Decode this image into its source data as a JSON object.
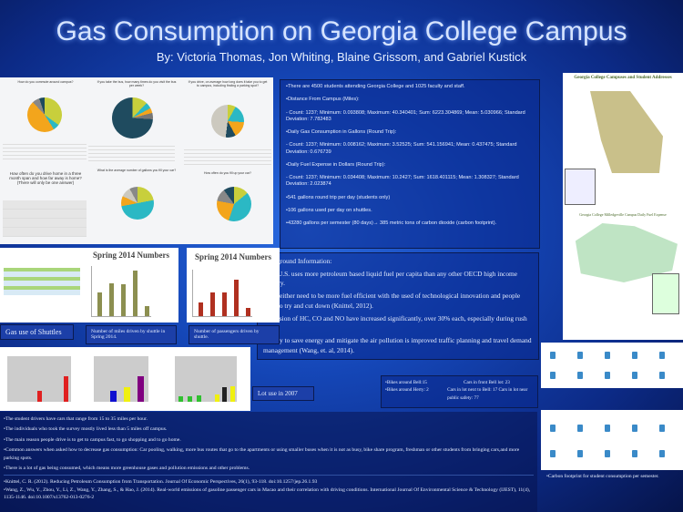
{
  "header": {
    "title": "Gas Consumption on Georgia College Campus",
    "authors": "By: Victoria Thomas, Jon Whiting, Blaine Grissom, and Gabriel Kustick"
  },
  "survey": {
    "q1": "How do you commute around campus?",
    "q2": "If you take the bus, how many times do you visit the bus per week?",
    "q3": "If you drive, on average how long does it take you to get to campus, including finding a parking spot?",
    "q4": "How often do you drive home in a three month span and how far away is home? (There will only be one answer)",
    "q5": "What is the average number of gallons you fill your car?",
    "q6": "How often do you fill up your car?"
  },
  "stats": {
    "items": [
      "•There are 4500 students attending Georgia College and 1025 faculty and staff.",
      "•Distance From Campus (Miles):",
      "- Count: 1237; Minimum: 0.093808; Maximum: 40.340401; Sum: 6223.304869; Mean: 5.030966; Standard Deviation: 7.782483",
      "•Daily Gas Consumption in Gallons (Round Trip):",
      "- Count: 1237; Minimum: 0.008162; Maximum: 3.52525; Sum: 541.156941; Mean: 0.437475; Standard Deviation: 0.676739",
      "•Daily Fuel Expense in Dollars (Round Trip):",
      "- Count: 1237; Minimum: 0.034408; Maximum: 10.2427; Sum: 1618.401115; Mean: 1.308327; Standard Deviation: 2.023874",
      "•541 gallons round trip per day (students only)",
      "•106 gallons used per day on shuttles.",
      "•43280 gallons per semester (80 days)→ 385 metric tons of carbon dioxide (carbon footprint)."
    ]
  },
  "maps": {
    "map1_title": "Georgia College Campuses and Student Addresses",
    "map2_title": "Georgia College Milledgeville Campus Daily Fuel Expense"
  },
  "background": {
    "heading": "Background Information:",
    "items": [
      "•The U.S. uses more petroleum based liquid fuel per capita than any other OECD high income country.",
      "•Cars either need to be more fuel efficient with the used of technological innovation and people need to try and cut down (Knittel, 2012).",
      "•Emission of HC, CO and NO have increased significantly, over 30% each, especially during rush hour.",
      "•A way to save energy and mitigate the air pollution is improved traffic planning and travel demand management (Wang, et. al, 2014)."
    ]
  },
  "shuttle": {
    "chart1_title": "Spring 2014 Numbers",
    "chart2_title": "Spring 2014 Numbers",
    "label": "Gas use of Shuttles",
    "caption1": "Number of miles driven by shuttle in Spring 2014.",
    "caption2": "Number of passengers driven by shuttle."
  },
  "lots": {
    "label": "Lot use in 2007"
  },
  "bikes": {
    "line1": "•Bikes around Bell:15",
    "line1b": "Cars in front Bell lot: 23",
    "line2": "•Bikes around Herty: 2",
    "line2b": "Cars in lot next to Bell: 17 Cars in lot near public safety: 77"
  },
  "carbon": {
    "caption": "•Carbon footprint for student consumption per semester."
  },
  "findings": {
    "items": [
      "•The student drivers have cars that range from 15 to 35 miles per hour.",
      "•The individuals who took the survey mostly lived less than 5 miles off campus.",
      "•The  main reason people drive is to get to campus fast, to go shopping and to go home.",
      "•Common  answers when asked how to decrease gas consumption: Car pooling, walking, more bus routes that go to the apartments or using smaller buses when it is not as busy, bike share program, freshman  or other students from bringing cars,and more parking spots.",
      "•There is a lot of gas being consumed, which means more  greenhouse gases and pollution emissions and other problems."
    ],
    "refs": [
      "•Knittel, C. R. (2012). Reducing Petroleum Consumption from Transportation. Journal Of Economic Perspectives, 26(1), 93-118. doi:10.1257/jep.26.1.93",
      "•Wang, Z., Wu, Y., Zhou, Y., Li, Z., Wang, Y., Zhang, S., & Hao, J. (2014). Real-world emissions of gasoline passenger cars in Macao and their correlation with driving conditions. International Journal Of Environmental Science & Technology (IJEST), 11(4), 1135-1146. doi:10.1007/s13762-013-0276-2"
    ]
  }
}
